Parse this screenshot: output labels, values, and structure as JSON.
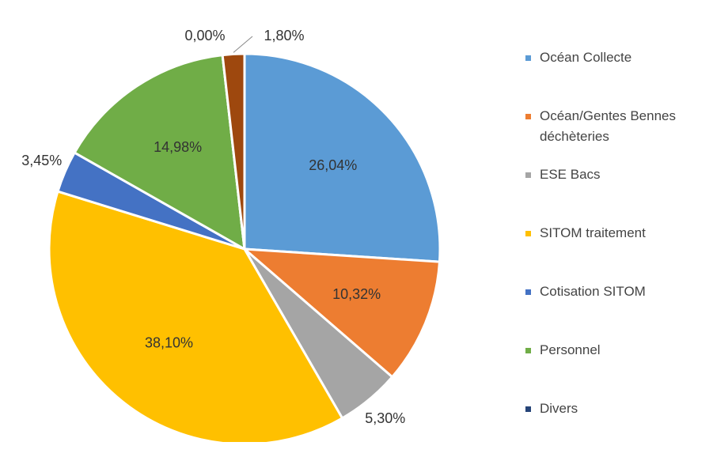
{
  "chart_data": {
    "type": "pie",
    "categories": [
      "Océan Collecte",
      "Océan/Gentes Bennes déchèteries",
      "ESE Bacs",
      "SITOM traitement",
      "Cotisation SITOM",
      "Personnel",
      "Divers",
      null
    ],
    "values": [
      26.04,
      10.32,
      5.3,
      38.1,
      3.45,
      14.98,
      0.0,
      1.8
    ],
    "value_labels": [
      "26,04%",
      "10,32%",
      "5,30%",
      "38,10%",
      "3,45%",
      "14,98%",
      "0,00%",
      "1,80%"
    ],
    "colors": [
      "#5b9bd5",
      "#ed7d31",
      "#a5a5a5",
      "#ffc000",
      "#4472c4",
      "#70ad47",
      "#264478",
      "#9e480e"
    ],
    "legend": "right"
  }
}
